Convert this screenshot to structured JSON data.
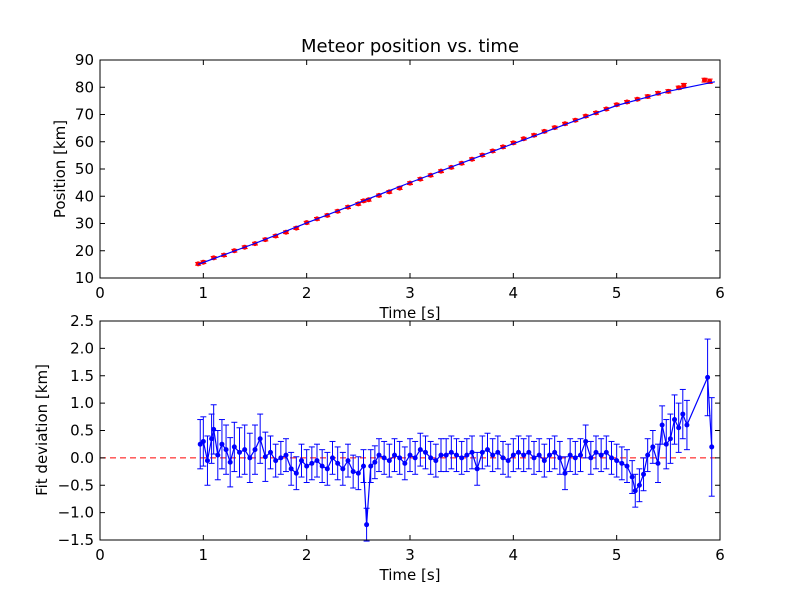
{
  "chart_data": [
    {
      "type": "line",
      "title": "Meteor position vs. time",
      "xlabel": "Time [s]",
      "ylabel": "Position [km]",
      "xlim": [
        0,
        6
      ],
      "ylim": [
        10,
        90
      ],
      "xticks": [
        "0",
        "1",
        "2",
        "3",
        "4",
        "5",
        "6"
      ],
      "yticks": [
        "10",
        "20",
        "30",
        "40",
        "50",
        "60",
        "70",
        "80",
        "90"
      ],
      "grid": false,
      "series": [
        {
          "color": "#ff0000",
          "style": "points-with-errorbars",
          "x": [
            0.95,
            1.0,
            1.1,
            1.2,
            1.3,
            1.4,
            1.5,
            1.6,
            1.7,
            1.8,
            1.9,
            2.0,
            2.1,
            2.2,
            2.3,
            2.4,
            2.5,
            2.55,
            2.6,
            2.7,
            2.8,
            2.9,
            3.0,
            3.1,
            3.2,
            3.3,
            3.4,
            3.5,
            3.6,
            3.7,
            3.8,
            3.9,
            4.0,
            4.1,
            4.2,
            4.3,
            4.4,
            4.5,
            4.6,
            4.7,
            4.8,
            4.9,
            5.0,
            5.1,
            5.2,
            5.3,
            5.4,
            5.5,
            5.6,
            5.65,
            5.85,
            5.9
          ],
          "y": [
            15.2,
            15.8,
            17.4,
            18.4,
            20.0,
            21.3,
            22.6,
            24.1,
            25.4,
            26.8,
            28.3,
            30.3,
            31.7,
            33.0,
            34.5,
            36.0,
            37.2,
            38.3,
            38.7,
            40.3,
            41.6,
            43.0,
            44.8,
            46.3,
            47.7,
            49.2,
            50.6,
            52.1,
            53.6,
            55.1,
            56.6,
            58.1,
            59.6,
            61.1,
            62.4,
            63.8,
            65.2,
            66.6,
            67.9,
            69.4,
            70.6,
            72.0,
            73.6,
            74.6,
            75.6,
            76.6,
            77.8,
            78.5,
            79.8,
            80.7,
            82.6,
            82.2
          ],
          "errors": [
            0.5,
            0.5,
            0.5,
            0.5,
            0.5,
            0.5,
            0.5,
            0.5,
            0.5,
            0.5,
            0.5,
            0.5,
            0.5,
            0.5,
            0.5,
            0.5,
            0.5,
            0.5,
            0.5,
            0.5,
            0.5,
            0.5,
            0.5,
            0.5,
            0.5,
            0.5,
            0.5,
            0.5,
            0.5,
            0.5,
            0.5,
            0.5,
            0.5,
            0.5,
            0.5,
            0.5,
            0.5,
            0.5,
            0.5,
            0.5,
            0.5,
            0.5,
            0.5,
            0.5,
            0.5,
            0.6,
            0.6,
            0.6,
            0.6,
            0.7,
            0.7,
            0.8
          ]
        },
        {
          "color": "#0000ff",
          "style": "line",
          "x": [
            0.95,
            1.5,
            2.0,
            2.5,
            3.0,
            3.5,
            4.0,
            4.5,
            5.0,
            5.5,
            5.95
          ],
          "y": [
            15.0,
            22.7,
            30.2,
            37.6,
            45.0,
            52.2,
            59.3,
            66.3,
            73.3,
            78.5,
            82.0
          ]
        }
      ]
    },
    {
      "type": "line",
      "title": "",
      "xlabel": "Time [s]",
      "ylabel": "Fit deviation [km]",
      "xlim": [
        0,
        6
      ],
      "ylim": [
        -1.5,
        2.5
      ],
      "xticks": [
        "0",
        "1",
        "2",
        "3",
        "4",
        "5",
        "6"
      ],
      "yticks": [
        "−1.5",
        "−1.0",
        "−0.5",
        "0.0",
        "0.5",
        "1.0",
        "1.5",
        "2.0",
        "2.5"
      ],
      "grid": false,
      "reference_line": {
        "y": 0,
        "color": "#ff0000",
        "style": "dashed"
      },
      "series": [
        {
          "color": "#0000ff",
          "style": "line-markers-errorbars",
          "x": [
            0.97,
            1.0,
            1.04,
            1.08,
            1.1,
            1.14,
            1.18,
            1.22,
            1.26,
            1.3,
            1.35,
            1.4,
            1.45,
            1.5,
            1.55,
            1.6,
            1.65,
            1.7,
            1.75,
            1.8,
            1.85,
            1.9,
            1.95,
            2.0,
            2.05,
            2.1,
            2.15,
            2.2,
            2.25,
            2.3,
            2.35,
            2.4,
            2.45,
            2.5,
            2.55,
            2.58,
            2.62,
            2.66,
            2.7,
            2.75,
            2.8,
            2.85,
            2.9,
            2.95,
            3.0,
            3.05,
            3.1,
            3.15,
            3.2,
            3.25,
            3.3,
            3.35,
            3.4,
            3.45,
            3.5,
            3.55,
            3.6,
            3.65,
            3.7,
            3.75,
            3.8,
            3.85,
            3.9,
            3.95,
            4.0,
            4.05,
            4.1,
            4.15,
            4.2,
            4.25,
            4.3,
            4.35,
            4.4,
            4.45,
            4.5,
            4.55,
            4.6,
            4.65,
            4.7,
            4.75,
            4.8,
            4.85,
            4.9,
            4.95,
            5.0,
            5.05,
            5.1,
            5.15,
            5.18,
            5.22,
            5.26,
            5.3,
            5.35,
            5.4,
            5.44,
            5.48,
            5.52,
            5.56,
            5.6,
            5.64,
            5.68,
            5.88,
            5.92
          ],
          "y": [
            0.25,
            0.3,
            -0.05,
            0.35,
            0.52,
            0.05,
            0.25,
            0.15,
            -0.08,
            0.2,
            0.1,
            0.15,
            0.0,
            0.15,
            0.35,
            0.02,
            0.1,
            -0.05,
            0.0,
            0.05,
            -0.2,
            -0.28,
            -0.05,
            -0.15,
            -0.1,
            -0.05,
            -0.15,
            -0.2,
            0.0,
            -0.1,
            -0.2,
            -0.05,
            -0.25,
            -0.28,
            -0.15,
            -1.22,
            -0.15,
            -0.08,
            0.05,
            0.0,
            -0.05,
            0.05,
            0.0,
            -0.1,
            0.05,
            0.0,
            0.15,
            0.1,
            0.0,
            -0.05,
            0.05,
            0.05,
            0.1,
            0.05,
            0.0,
            0.05,
            0.1,
            -0.2,
            0.1,
            0.15,
            0.05,
            0.1,
            0.0,
            -0.05,
            0.05,
            0.1,
            0.05,
            0.1,
            0.0,
            0.05,
            -0.05,
            0.05,
            0.1,
            0.0,
            -0.28,
            0.05,
            0.0,
            0.05,
            0.3,
            0.0,
            0.1,
            0.05,
            0.1,
            0.0,
            -0.05,
            -0.1,
            -0.15,
            -0.35,
            -0.6,
            -0.5,
            -0.3,
            0.05,
            0.2,
            -0.1,
            0.6,
            0.25,
            0.35,
            0.7,
            0.55,
            0.8,
            0.6,
            1.47,
            0.2
          ],
          "errors": [
            0.45,
            0.45,
            0.45,
            0.45,
            0.45,
            0.45,
            0.45,
            0.45,
            0.45,
            0.45,
            0.45,
            0.45,
            0.45,
            0.45,
            0.45,
            0.45,
            0.3,
            0.3,
            0.3,
            0.3,
            0.3,
            0.3,
            0.3,
            0.3,
            0.3,
            0.3,
            0.3,
            0.3,
            0.3,
            0.3,
            0.3,
            0.3,
            0.3,
            0.3,
            0.3,
            0.3,
            0.3,
            0.3,
            0.3,
            0.3,
            0.3,
            0.3,
            0.3,
            0.3,
            0.3,
            0.3,
            0.3,
            0.3,
            0.3,
            0.3,
            0.3,
            0.3,
            0.3,
            0.3,
            0.3,
            0.3,
            0.3,
            0.3,
            0.3,
            0.3,
            0.3,
            0.3,
            0.3,
            0.3,
            0.3,
            0.3,
            0.3,
            0.3,
            0.3,
            0.3,
            0.3,
            0.3,
            0.3,
            0.3,
            0.3,
            0.3,
            0.3,
            0.3,
            0.3,
            0.3,
            0.3,
            0.3,
            0.3,
            0.3,
            0.3,
            0.3,
            0.3,
            0.3,
            0.3,
            0.3,
            0.3,
            0.3,
            0.3,
            0.35,
            0.35,
            0.45,
            0.45,
            0.45,
            0.45,
            0.45,
            0.45,
            0.7,
            0.9
          ]
        }
      ]
    }
  ]
}
